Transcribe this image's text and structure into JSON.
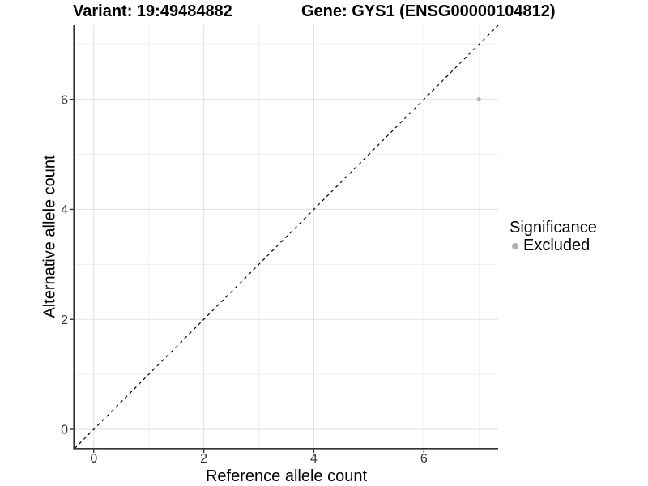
{
  "titles": {
    "variant": "Variant: 19:49484882",
    "gene": "Gene: GYS1 (ENSG00000104812)"
  },
  "chart_data": {
    "type": "scatter",
    "title_left": "Variant: 19:49484882",
    "title_right": "Gene: GYS1 (ENSG00000104812)",
    "xlabel": "Reference allele count",
    "ylabel": "Alternative allele count",
    "xlim": [
      -0.35,
      7.35
    ],
    "ylim": [
      -0.35,
      7.35
    ],
    "x_ticks": [
      0,
      2,
      4,
      6
    ],
    "y_ticks": [
      0,
      2,
      4,
      6
    ],
    "minor_gridlines": [
      1,
      3,
      5,
      7
    ],
    "grid": true,
    "points": [
      {
        "x": 7,
        "y": 6,
        "significance": "Excluded",
        "color": "#b3b3b3"
      }
    ],
    "reference_line": {
      "type": "identity",
      "style": "dashed",
      "color": "#000000"
    },
    "legend_position": "right"
  },
  "legend": {
    "title": "Significance",
    "items": [
      {
        "label": "Excluded",
        "color": "#b0b0b0",
        "marker": "circle-icon"
      }
    ]
  },
  "colors": {
    "background": "#ffffff",
    "grid_major": "#e3e3e3",
    "grid_minor": "#f0f0f0",
    "axis_line": "#333333",
    "tick_text": "#333333",
    "point": "#b3b3b3"
  }
}
